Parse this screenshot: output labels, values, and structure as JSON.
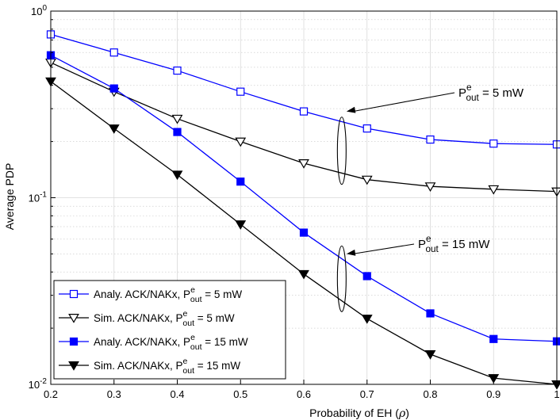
{
  "chart_data": {
    "type": "line",
    "x": [
      0.2,
      0.3,
      0.4,
      0.5,
      0.6,
      0.7,
      0.8,
      0.9,
      1.0
    ],
    "xlabel_main": "Probability of EH (",
    "xlabel_sym": "ρ",
    "xlabel_end": ")",
    "ylabel": "Average PDP",
    "xlim": [
      0.2,
      1.0
    ],
    "ylim": [
      0.01,
      1.0
    ],
    "yscale": "log",
    "grid": true,
    "x_tick_labels": [
      "0.2",
      "0.3",
      "0.4",
      "0.5",
      "0.6",
      "0.7",
      "0.8",
      "0.9",
      "1"
    ],
    "y_tick_labels": [
      {
        "base": "10",
        "exp": "0",
        "value": 1.0
      },
      {
        "base": "10",
        "exp": "-1",
        "value": 0.1
      },
      {
        "base": "10",
        "exp": "-2",
        "value": 0.01
      }
    ],
    "series": [
      {
        "name": "Analy. ACK/NAKx",
        "power": "5 mW",
        "color": "#0000ff",
        "marker": "square-open",
        "values": [
          0.75,
          0.6,
          0.48,
          0.37,
          0.29,
          0.235,
          0.205,
          0.195,
          0.193
        ]
      },
      {
        "name": "Sim. ACK/NAKx",
        "power": "5 mW",
        "color": "#000000",
        "marker": "triangle-down-open",
        "values": [
          0.53,
          0.37,
          0.265,
          0.2,
          0.153,
          0.125,
          0.115,
          0.111,
          0.108
        ]
      },
      {
        "name": "Analy. ACK/NAKx",
        "power": "15 mW",
        "color": "#0000ff",
        "marker": "square-filled",
        "values": [
          0.58,
          0.385,
          0.225,
          0.122,
          0.065,
          0.038,
          0.024,
          0.0175,
          0.017
        ]
      },
      {
        "name": "Sim. ACK/NAKx",
        "power": "15 mW",
        "color": "#000000",
        "marker": "triangle-down-filled",
        "values": [
          0.42,
          0.235,
          0.133,
          0.072,
          0.039,
          0.0225,
          0.0145,
          0.0108,
          0.01
        ]
      }
    ],
    "legend": {
      "placement": "bottom-left",
      "p_base": "P",
      "p_sup": "e",
      "p_sub": "out",
      "eq": " = "
    },
    "annotations": [
      {
        "id": "a5",
        "p_base": "P",
        "p_sup": "e",
        "p_sub": "out",
        "text": " = 5 mW",
        "ellipse_x": 0.66,
        "ellipse_y": [
          0.255,
          0.125
        ],
        "arrow_to_y": 0.29
      },
      {
        "id": "a15",
        "p_base": "P",
        "p_sup": "e",
        "p_sub": "out",
        "text": " = 15 mW",
        "ellipse_x": 0.66,
        "ellipse_y": [
          0.052,
          0.026
        ],
        "arrow_to_y": 0.05
      }
    ]
  }
}
